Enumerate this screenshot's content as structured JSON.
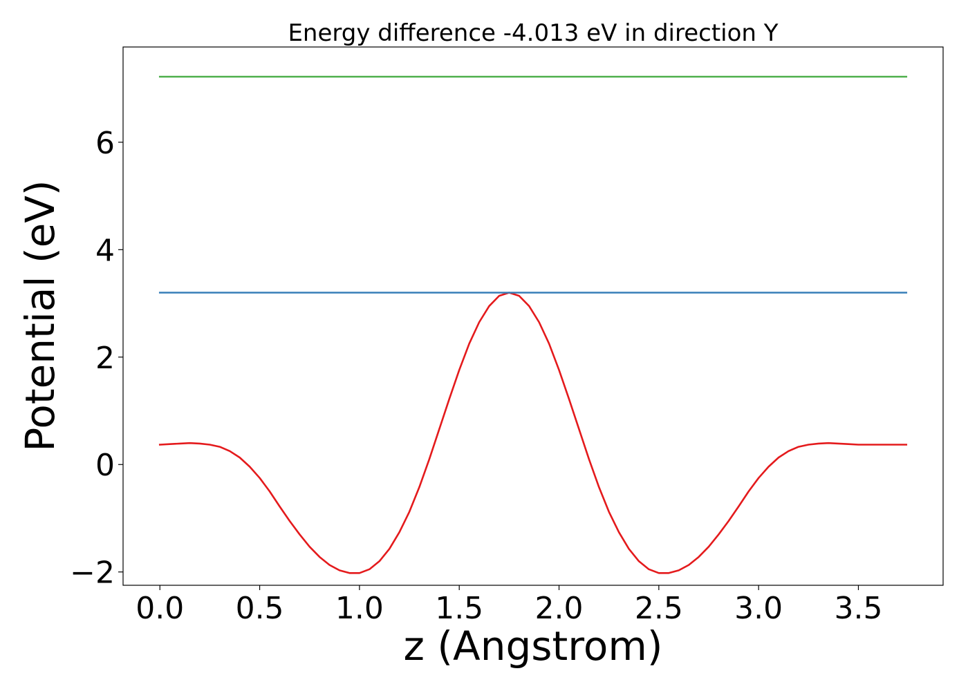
{
  "chart_data": {
    "type": "line",
    "title": "Energy difference -4.013 eV in direction Y",
    "xlabel": "z (Angstrom)",
    "ylabel": "Potential (eV)",
    "xlim": [
      -0.1845,
      3.9245
    ],
    "ylim": [
      -2.248,
      7.773
    ],
    "xticks": [
      0.0,
      0.5,
      1.0,
      1.5,
      2.0,
      2.5,
      3.0,
      3.5
    ],
    "xtick_labels": [
      "0.0",
      "0.5",
      "1.0",
      "1.5",
      "2.0",
      "2.5",
      "3.0",
      "3.5"
    ],
    "yticks": [
      -2,
      0,
      2,
      4,
      6
    ],
    "ytick_labels": [
      "−2",
      "0",
      "2",
      "4",
      "6"
    ],
    "grid": false,
    "series": [
      {
        "color": "#e41a1c",
        "x": [
          0.0,
          0.05,
          0.1,
          0.15,
          0.2,
          0.25,
          0.3,
          0.35,
          0.4,
          0.45,
          0.5,
          0.55,
          0.6,
          0.65,
          0.7,
          0.75,
          0.8,
          0.85,
          0.9,
          0.95,
          1.0,
          1.05,
          1.1,
          1.15,
          1.2,
          1.25,
          1.3,
          1.35,
          1.4,
          1.45,
          1.5,
          1.55,
          1.6,
          1.65,
          1.7,
          1.75,
          1.8,
          1.85,
          1.9,
          1.95,
          2.0,
          2.05,
          2.1,
          2.15,
          2.2,
          2.25,
          2.3,
          2.35,
          2.4,
          2.45,
          2.5,
          2.55,
          2.6,
          2.65,
          2.7,
          2.75,
          2.8,
          2.85,
          2.9,
          2.95,
          3.0,
          3.05,
          3.1,
          3.15,
          3.2,
          3.25,
          3.3,
          3.35,
          3.4,
          3.45,
          3.5,
          3.55,
          3.6,
          3.65,
          3.7,
          3.74
        ],
        "y": [
          0.37,
          0.38,
          0.39,
          0.4,
          0.39,
          0.37,
          0.33,
          0.25,
          0.13,
          -0.04,
          -0.25,
          -0.5,
          -0.78,
          -1.05,
          -1.3,
          -1.53,
          -1.72,
          -1.87,
          -1.97,
          -2.02,
          -2.02,
          -1.95,
          -1.8,
          -1.57,
          -1.26,
          -0.88,
          -0.42,
          0.1,
          0.66,
          1.22,
          1.76,
          2.25,
          2.65,
          2.95,
          3.14,
          3.2,
          3.14,
          2.95,
          2.65,
          2.25,
          1.76,
          1.22,
          0.66,
          0.1,
          -0.42,
          -0.88,
          -1.26,
          -1.57,
          -1.8,
          -1.95,
          -2.02,
          -2.02,
          -1.97,
          -1.87,
          -1.72,
          -1.53,
          -1.3,
          -1.05,
          -0.78,
          -0.5,
          -0.25,
          -0.04,
          0.13,
          0.25,
          0.33,
          0.37,
          0.39,
          0.4,
          0.39,
          0.38,
          0.37,
          0.37,
          0.37,
          0.37,
          0.37,
          0.37
        ]
      },
      {
        "color": "#377eb8",
        "x": [
          0.0,
          3.74
        ],
        "y": [
          3.2,
          3.2
        ]
      },
      {
        "color": "#4daf4a",
        "x": [
          0.0,
          3.74
        ],
        "y": [
          7.22,
          7.22
        ]
      }
    ]
  }
}
